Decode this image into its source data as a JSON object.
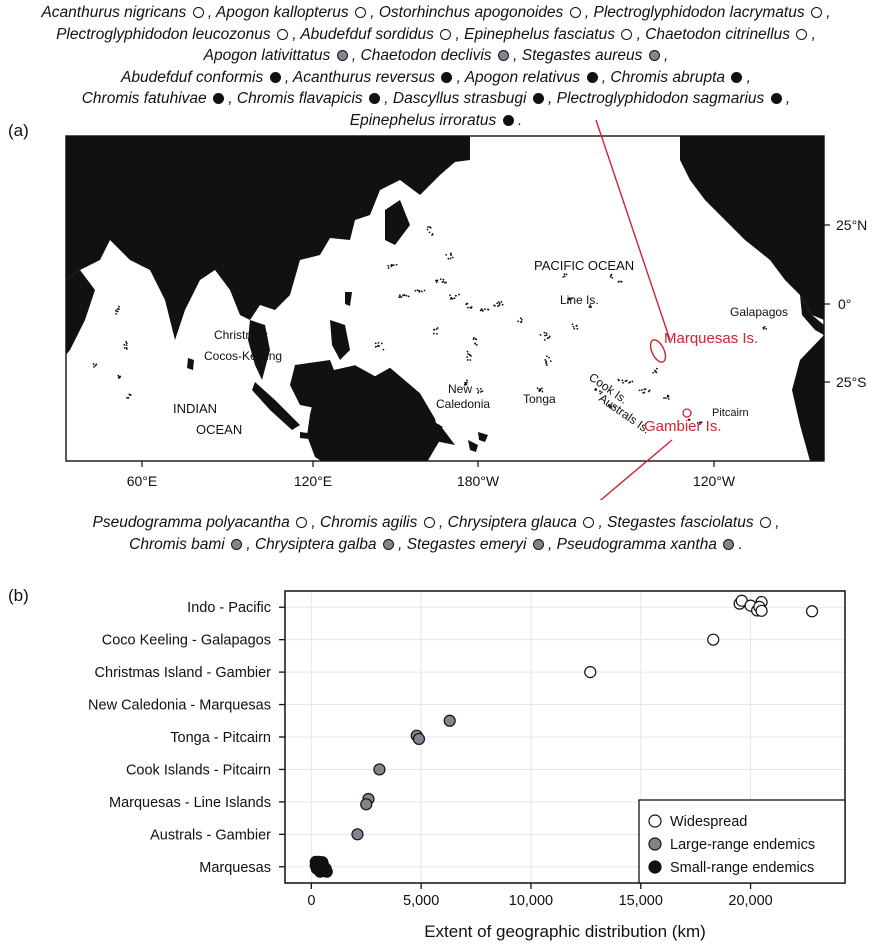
{
  "panel_a_label": "(a)",
  "panel_b_label": "(b)",
  "species_top": [
    [
      {
        "name": "Acanthurus nigricans",
        "c": "w"
      },
      {
        "name": "Apogon kallopterus",
        "c": "w"
      },
      {
        "name": "Ostorhinchus apogonoides",
        "c": "w"
      },
      {
        "name": "Plectroglyphidodon lacrymatus",
        "c": "w"
      }
    ],
    [
      {
        "name": "Plectroglyphidodon leucozonus",
        "c": "w"
      },
      {
        "name": "Abudefduf sordidus",
        "c": "w"
      },
      {
        "name": "Epinephelus fasciatus",
        "c": "w"
      },
      {
        "name": "Chaetodon citrinellus",
        "c": "w"
      }
    ],
    [
      {
        "name": "Apogon lativittatus",
        "c": "g"
      },
      {
        "name": "Chaetodon declivis",
        "c": "g"
      },
      {
        "name": "Stegastes aureus",
        "c": "g"
      }
    ],
    [
      {
        "name": "Abudefduf conformis",
        "c": "b"
      },
      {
        "name": "Acanthurus reversus",
        "c": "b"
      },
      {
        "name": "Apogon relativus",
        "c": "b"
      },
      {
        "name": "Chromis abrupta",
        "c": "b"
      }
    ],
    [
      {
        "name": "Chromis fatuhivae",
        "c": "b"
      },
      {
        "name": "Chromis flavapicis",
        "c": "b"
      },
      {
        "name": "Dascyllus strasbugi",
        "c": "b"
      },
      {
        "name": "Plectroglyphidodon sagmarius",
        "c": "b"
      }
    ],
    [
      {
        "name": "Epinephelus irroratus",
        "c": "b"
      }
    ]
  ],
  "species_bottom": [
    [
      {
        "name": "Pseudogramma polyacantha",
        "c": "w"
      },
      {
        "name": "Chromis agilis",
        "c": "w"
      },
      {
        "name": "Chrysiptera glauca",
        "c": "w"
      },
      {
        "name": "Stegastes fasciolatus",
        "c": "w"
      }
    ],
    [
      {
        "name": "Chromis bami",
        "c": "g"
      },
      {
        "name": "Chrysiptera galba",
        "c": "g"
      },
      {
        "name": "Stegastes emeryi",
        "c": "g"
      },
      {
        "name": "Pseudogramma xantha",
        "c": "g"
      }
    ]
  ],
  "map": {
    "ocean_labels": [
      "PACIFIC OCEAN",
      "INDIAN",
      "OCEAN"
    ],
    "place_labels": [
      "Christmas",
      "Cocos-Keeling",
      "New",
      "Caledonia",
      "Tonga",
      "Line Is.",
      "Galapagos",
      "Cook Is.",
      "Australs Is.",
      "Pitcairn"
    ],
    "highlight_labels": [
      "Marquesas Is.",
      "Gambier Is."
    ],
    "lon_ticks": [
      "60°E",
      "120°E",
      "180°W",
      "120°W"
    ],
    "lat_ticks": [
      "25°N",
      "0°",
      "25°S"
    ],
    "highlight_color": "#d1242f"
  },
  "chart_data": {
    "type": "scatter",
    "xlabel": "Extent of geographic distribution (km)",
    "ylabel": "",
    "xlim": [
      -1200,
      24300
    ],
    "xticks": [
      0,
      5000,
      10000,
      15000,
      20000
    ],
    "xtick_labels": [
      "0",
      "5,000",
      "10,000",
      "15,000",
      "20,000"
    ],
    "categories": [
      "Indo - Pacific",
      "Coco Keeling - Galapagos",
      "Christmas Island - Gambier",
      "New Caledonia - Marquesas",
      "Tonga - Pitcairn",
      "Cook Islands - Pitcairn",
      "Marquesas - Line Islands",
      "Australs - Gambier",
      "Marquesas"
    ],
    "grid": true,
    "legend_position": "bottom-right",
    "series": [
      {
        "name": "Widespread",
        "color": "#ffffff",
        "points": [
          {
            "x": 19500,
            "y": "Indo - Pacific",
            "j": 0.22
          },
          {
            "x": 19600,
            "y": "Indo - Pacific",
            "j": 0.4
          },
          {
            "x": 20000,
            "y": "Indo - Pacific",
            "j": 0.1
          },
          {
            "x": 20300,
            "y": "Indo - Pacific",
            "j": -0.2
          },
          {
            "x": 20500,
            "y": "Indo - Pacific",
            "j": 0.32
          },
          {
            "x": 20400,
            "y": "Indo - Pacific",
            "j": 0.02
          },
          {
            "x": 20500,
            "y": "Indo - Pacific",
            "j": -0.22
          },
          {
            "x": 22800,
            "y": "Indo - Pacific",
            "j": -0.25
          },
          {
            "x": 18300,
            "y": "Coco Keeling - Galapagos",
            "j": 0
          },
          {
            "x": 12700,
            "y": "Christmas Island - Gambier",
            "j": 0
          }
        ]
      },
      {
        "name": "Large-range endemics",
        "color": "#8a8090",
        "points": [
          {
            "x": 6300,
            "y": "Tonga - Pitcairn",
            "j": 1.0
          },
          {
            "x": 4800,
            "y": "Tonga - Pitcairn",
            "j": 0.08
          },
          {
            "x": 4900,
            "y": "Tonga - Pitcairn",
            "j": -0.12
          },
          {
            "x": 3100,
            "y": "Cook Islands - Pitcairn",
            "j": 0
          },
          {
            "x": 2600,
            "y": "Marquesas - Line Islands",
            "j": 0.18
          },
          {
            "x": 2500,
            "y": "Marquesas - Line Islands",
            "j": -0.15
          },
          {
            "x": 2100,
            "y": "Australs - Gambier",
            "j": 0
          }
        ]
      },
      {
        "name": "Small-range endemics",
        "color": "#111111",
        "points": [
          {
            "x": 200,
            "y": "Marquesas",
            "j": 0.3
          },
          {
            "x": 350,
            "y": "Marquesas",
            "j": 0.3
          },
          {
            "x": 500,
            "y": "Marquesas",
            "j": 0.28
          },
          {
            "x": 200,
            "y": "Marquesas",
            "j": 0.08
          },
          {
            "x": 350,
            "y": "Marquesas",
            "j": 0.1
          },
          {
            "x": 550,
            "y": "Marquesas",
            "j": 0.06
          },
          {
            "x": 250,
            "y": "Marquesas",
            "j": -0.12
          },
          {
            "x": 450,
            "y": "Marquesas",
            "j": -0.1
          },
          {
            "x": 650,
            "y": "Marquesas",
            "j": -0.12
          },
          {
            "x": 400,
            "y": "Marquesas",
            "j": -0.3
          },
          {
            "x": 700,
            "y": "Marquesas",
            "j": -0.3
          },
          {
            "x": 550,
            "y": "Marquesas",
            "j": -0.05
          }
        ]
      }
    ]
  }
}
